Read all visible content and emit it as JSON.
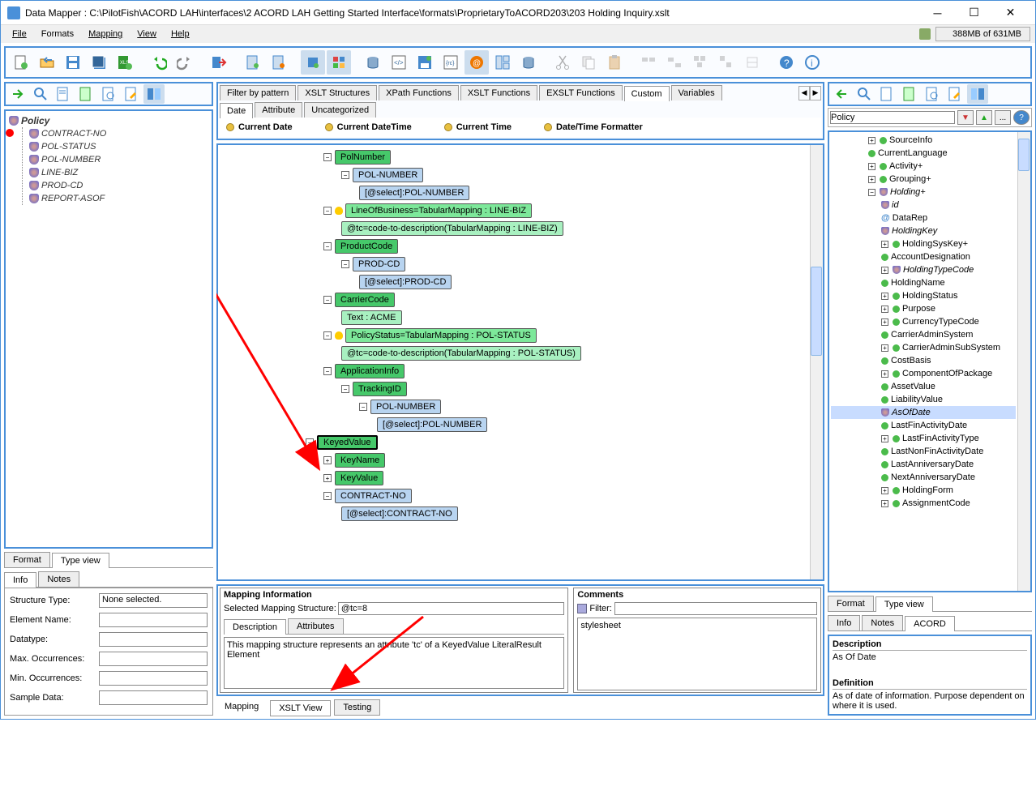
{
  "window": {
    "title": "Data Mapper : C:\\PilotFish\\ACORD LAH\\interfaces\\2 ACORD LAH Getting Started Interface\\formats\\ProprietaryToACORD203\\203 Holding Inquiry.xslt",
    "memory": "388MB of 631MB"
  },
  "menu": {
    "file": "File",
    "formats": "Formats",
    "mapping": "Mapping",
    "view": "View",
    "help": "Help"
  },
  "left": {
    "root": "Policy",
    "items": [
      "CONTRACT-NO",
      "POL-STATUS",
      "POL-NUMBER",
      "LINE-BIZ",
      "PROD-CD",
      "REPORT-ASOF"
    ],
    "tabs": {
      "format": "Format",
      "typeview": "Type view",
      "info": "Info",
      "notes": "Notes"
    },
    "props": {
      "structure_type": "Structure Type:",
      "structure_type_val": "None selected.",
      "element_name": "Element Name:",
      "datatype": "Datatype:",
      "max_occ": "Max. Occurrences:",
      "min_occ": "Min. Occurrences:",
      "sample": "Sample Data:"
    }
  },
  "mid": {
    "toptabs": {
      "filter": "Filter by pattern",
      "xslt_struct": "XSLT Structures",
      "xpath": "XPath Functions",
      "xslt_fn": "XSLT Functions",
      "exslt": "EXSLT Functions",
      "custom": "Custom",
      "vars": "Variables"
    },
    "subtabs": {
      "date": "Date",
      "attr": "Attribute",
      "uncat": "Uncategorized"
    },
    "datefns": {
      "d1": "Current Date",
      "d2": "Current DateTime",
      "d3": "Current Time",
      "d4": "Date/Time Formatter"
    },
    "nodes": {
      "polnumber": "PolNumber",
      "polnumber_cn": "POL-NUMBER",
      "polnumber_sel": "[@select]:POL-NUMBER",
      "lob": "LineOfBusiness=TabularMapping : LINE-BIZ",
      "lob_tc": "@tc=code-to-description(TabularMapping : LINE-BIZ)",
      "prodcode": "ProductCode",
      "prodcd": "PROD-CD",
      "prodcd_sel": "[@select]:PROD-CD",
      "carrier": "CarrierCode",
      "carrier_txt": "Text : ACME",
      "polstatus": "PolicyStatus=TabularMapping : POL-STATUS",
      "polstatus_tc": "@tc=code-to-description(TabularMapping : POL-STATUS)",
      "appinfo": "ApplicationInfo",
      "tracking": "TrackingID",
      "tracking_pn": "POL-NUMBER",
      "tracking_sel": "[@select]:POL-NUMBER",
      "keyed": "KeyedValue",
      "keyname": "KeyName",
      "keyvalue": "KeyValue",
      "contractno": "CONTRACT-NO",
      "contractno_sel": "[@select]:CONTRACT-NO"
    },
    "info": {
      "title": "Mapping Information",
      "selected": "Selected Mapping Structure:",
      "selected_val": "@tc=8",
      "desc_tab": "Description",
      "attr_tab": "Attributes",
      "desc_text": "This mapping structure represents an attribute 'tc' of a KeyedValue LiteralResult Element",
      "comments": "Comments",
      "filter_lbl": "Filter:",
      "filter_val": "stylesheet"
    },
    "bottomtabs": {
      "mapping": "Mapping",
      "xsltview": "XSLT View",
      "testing": "Testing"
    }
  },
  "right": {
    "filter": "Policy",
    "tree": [
      {
        "l": "SourceInfo",
        "indent": 1,
        "exp": "+"
      },
      {
        "l": "CurrentLanguage",
        "indent": 1
      },
      {
        "l": "Activity+",
        "indent": 1,
        "exp": "+"
      },
      {
        "l": "Grouping+",
        "indent": 1,
        "exp": "+"
      },
      {
        "l": "Holding+",
        "indent": 1,
        "it": true,
        "shield": true,
        "exp": "-"
      },
      {
        "l": "id",
        "indent": 2,
        "it": true,
        "shield": true
      },
      {
        "l": "DataRep",
        "indent": 2,
        "at": true
      },
      {
        "l": "HoldingKey",
        "indent": 2,
        "it": true,
        "shield": true
      },
      {
        "l": "HoldingSysKey+",
        "indent": 2,
        "exp": "+"
      },
      {
        "l": "AccountDesignation",
        "indent": 2
      },
      {
        "l": "HoldingTypeCode",
        "indent": 2,
        "it": true,
        "shield": true,
        "exp": "+"
      },
      {
        "l": "HoldingName",
        "indent": 2
      },
      {
        "l": "HoldingStatus",
        "indent": 2,
        "exp": "+"
      },
      {
        "l": "Purpose",
        "indent": 2,
        "exp": "+"
      },
      {
        "l": "CurrencyTypeCode",
        "indent": 2,
        "exp": "+"
      },
      {
        "l": "CarrierAdminSystem",
        "indent": 2
      },
      {
        "l": "CarrierAdminSubSystem",
        "indent": 2,
        "exp": "+"
      },
      {
        "l": "CostBasis",
        "indent": 2
      },
      {
        "l": "ComponentOfPackage",
        "indent": 2,
        "exp": "+"
      },
      {
        "l": "AssetValue",
        "indent": 2
      },
      {
        "l": "LiabilityValue",
        "indent": 2
      },
      {
        "l": "AsOfDate",
        "indent": 2,
        "sel": true,
        "shield": true,
        "it": true
      },
      {
        "l": "LastFinActivityDate",
        "indent": 2
      },
      {
        "l": "LastFinActivityType",
        "indent": 2,
        "exp": "+"
      },
      {
        "l": "LastNonFinActivityDate",
        "indent": 2
      },
      {
        "l": "LastAnniversaryDate",
        "indent": 2
      },
      {
        "l": "NextAnniversaryDate",
        "indent": 2
      },
      {
        "l": "HoldingForm",
        "indent": 2,
        "exp": "+"
      },
      {
        "l": "AssignmentCode",
        "indent": 2,
        "exp": "+"
      }
    ],
    "tabs": {
      "format": "Format",
      "typeview": "Type view",
      "info": "Info",
      "notes": "Notes",
      "acord": "ACORD"
    },
    "desc_h": "Description",
    "desc_t": "As Of Date",
    "def_h": "Definition",
    "def_t": "As of date of information. Purpose dependent on where it is used."
  },
  "colors": {
    "green": "#7de89a",
    "darkgreen": "#46c86a",
    "blue": "#b8d4f0",
    "lightgreen": "#a8f0c0",
    "border": "#4a90d9",
    "arrow": "#ff0000"
  }
}
